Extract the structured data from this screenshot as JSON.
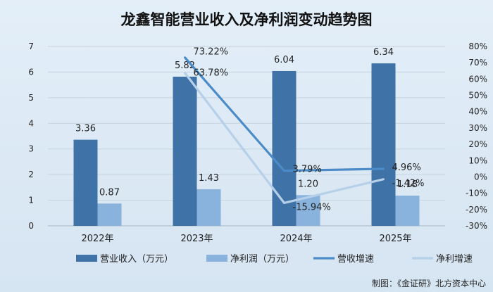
{
  "chart_data": {
    "type": "bar",
    "title": "龙鑫智能营业收入及净利润变动趋势图",
    "categories": [
      "2022年",
      "2023年",
      "2024年",
      "2025年"
    ],
    "bar_series": [
      {
        "name": "营业收入（万元）",
        "values": [
          3.36,
          5.82,
          6.04,
          6.34
        ],
        "labels": [
          "3.36",
          "5.82",
          "6.04",
          "6.34"
        ],
        "color": "#3f73a8"
      },
      {
        "name": "净利润（万元）",
        "values": [
          0.87,
          1.43,
          1.2,
          1.18
        ],
        "labels": [
          "0.87",
          "1.43",
          "1.20",
          "1.18"
        ],
        "color": "#89b2dc"
      }
    ],
    "line_series": [
      {
        "name": "营收增速",
        "x_start_index": 1,
        "values": [
          73.22,
          3.79,
          4.96
        ],
        "labels": [
          "73.22%",
          "3.79%",
          "4.96%"
        ],
        "color": "#4b8bc8"
      },
      {
        "name": "净利增速",
        "x_start_index": 1,
        "values": [
          63.78,
          -15.94,
          -1.42
        ],
        "labels": [
          "63.78%",
          "-15.94%",
          "-1.42%"
        ],
        "color": "#b7d0ea"
      }
    ],
    "y_left": {
      "min": 0,
      "max": 7,
      "ticks": [
        "0",
        "1",
        "2",
        "3",
        "4",
        "5",
        "6",
        "7"
      ]
    },
    "y_right": {
      "min": -30,
      "max": 80,
      "ticks": [
        "-30%",
        "-20%",
        "-10%",
        "0%",
        "10%",
        "20%",
        "30%",
        "40%",
        "50%",
        "60%",
        "70%",
        "80%"
      ]
    },
    "grid": true,
    "legend_position": "bottom"
  },
  "footer": {
    "credit": "制图：《金证研》北方资本中心"
  }
}
